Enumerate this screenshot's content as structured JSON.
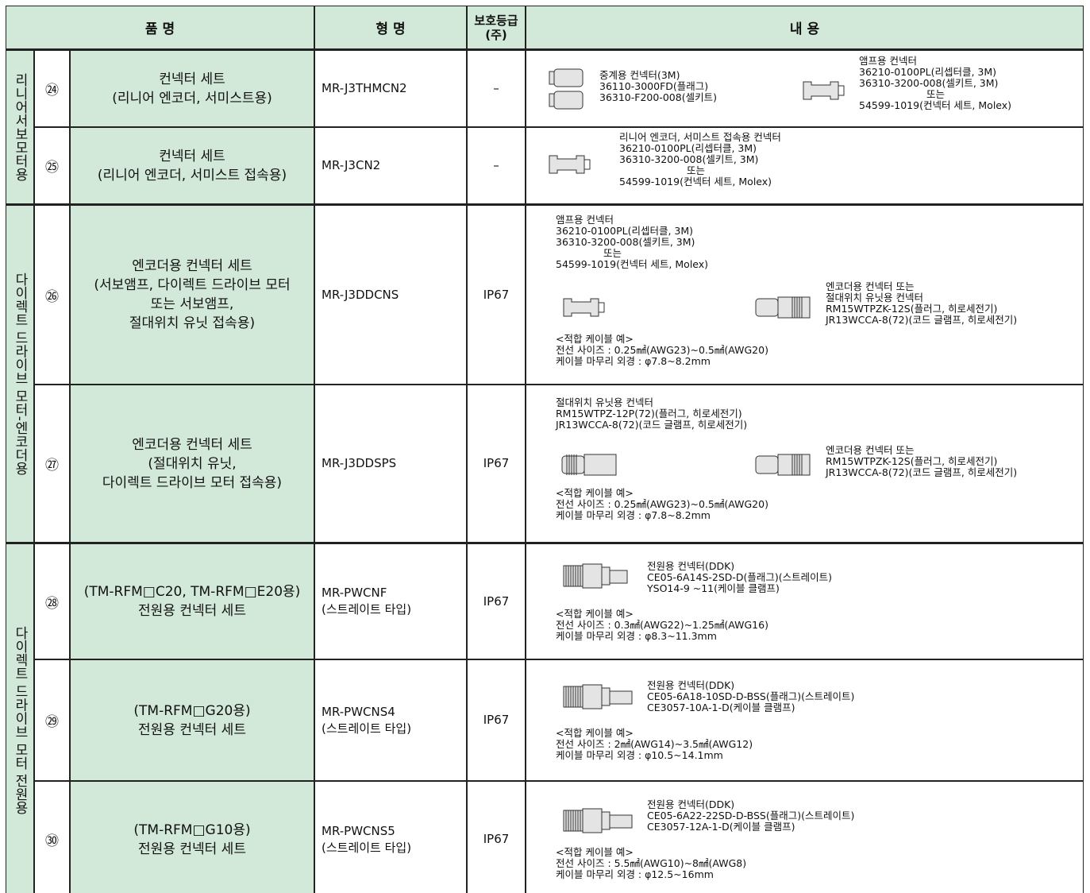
{
  "header": {
    "name": "품 명",
    "model": "형 명",
    "protection": [
      "보호등급",
      "(주)"
    ],
    "content": "내 용"
  },
  "groups": [
    {
      "label": "리니어서보모터용",
      "rows": [
        {
          "no": "㉔",
          "name": [
            "컨넥터 세트",
            "(리니어 엔코더, 서미스트용)"
          ],
          "model": [
            "MR-J3THMCN2"
          ],
          "protection": "–",
          "blocks": [
            [
              "중계용 컨넥터(3M)",
              "36110-3000FD(플래그)",
              "36310-F200-008(셀키트)"
            ],
            [
              "앰프용 컨넥터",
              "36210-0100PL(리셉터클, 3M)",
              "36310-3200-008(셀키트, 3M)",
              "또는",
              "54599-1019(컨넥터 세트, Molex)"
            ]
          ]
        },
        {
          "no": "㉕",
          "name": [
            "컨넥터 세트",
            "(리니어 엔코더, 서미스트 접속용)"
          ],
          "model": [
            "MR-J3CN2"
          ],
          "protection": "–",
          "blocks": [
            [
              "리니어 엔코더, 서미스트 접속용 컨넥터",
              "36210-0100PL(리셉터클, 3M)",
              "36310-3200-008(셀키트, 3M)",
              "또는",
              "54599-1019(컨넥터 세트, Molex)"
            ]
          ]
        }
      ]
    },
    {
      "label": "다이렉트 드라이브 모터-엔코더용",
      "rows": [
        {
          "no": "㉖",
          "name": [
            "엔코더용 컨넥터 세트",
            "(서보앰프, 다이렉트 드라이브 모터",
            "또는 서보앰프,",
            "절대위치 유닛 접속용)"
          ],
          "model": [
            "MR-J3DDCNS"
          ],
          "protection": "IP67",
          "blocks": [
            [
              "앰프용 컨넥터",
              "36210-0100PL(리셉터클, 3M)",
              "36310-3200-008(셀키트, 3M)",
              "또는",
              "54599-1019(컨넥터 세트, Molex)"
            ],
            [
              "엔코더용 컨넥터 또는",
              "절대위치 유닛용 컨넥터",
              "RM15WTPZK-12S(플러그, 히로세전기)",
              "JR13WCCA-8(72)(코드 글램프, 히로세전기)"
            ],
            [
              "<적합 케이블 예>",
              "전선 사이즈 : 0.25㎟(AWG23)~0.5㎟(AWG20)",
              "케이블 마무리 외경 : φ7.8~8.2mm"
            ]
          ]
        },
        {
          "no": "㉗",
          "name": [
            "엔코더용 컨넥터 세트",
            "(절대위치 유닛,",
            "다이렉트 드라이브 모터 접속용)"
          ],
          "model": [
            "MR-J3DDSPS"
          ],
          "protection": "IP67",
          "blocks": [
            [
              "절대위치 유닛용 컨넥터",
              "RM15WTPZ-12P(72)(플러그, 히로세전기)",
              "JR13WCCA-8(72)(코드 글램프, 히로세전기)"
            ],
            [
              "엔코더용 컨넥터 또는",
              "RM15WTPZK-12S(플러그, 히로세전기)",
              "JR13WCCA-8(72)(코드 글램프, 히로세전기)"
            ],
            [
              "<적합 케이블 예>",
              "전선 사이즈 : 0.25㎟(AWG23)~0.5㎟(AWG20)",
              "케이블 마무리 외경 : φ7.8~8.2mm"
            ]
          ]
        }
      ]
    },
    {
      "label": "다이렉트 드라이브 모터 전원용",
      "rows": [
        {
          "no": "㉘",
          "name": [
            "(TM-RFM□C20, TM-RFM□E20용)",
            "전원용 컨넥터 세트"
          ],
          "model": [
            "MR-PWCNF",
            "(스트레이트 타입)"
          ],
          "protection": "IP67",
          "blocks": [
            [
              "전원용 컨넥터(DDK)",
              "CE05-6A14S-2SD-D(플래그)(스트레이트)",
              "YSO14-9 ~11(케이블 클램프)"
            ],
            [
              "<적합 케이블 예>",
              "전선 사이즈 : 0.3㎟(AWG22)~1.25㎟(AWG16)",
              "케이블 마무리 외경 : φ8.3~11.3mm"
            ]
          ]
        },
        {
          "no": "㉙",
          "name": [
            "(TM-RFM□G20용)",
            "전원용 컨넥터 세트"
          ],
          "model": [
            "MR-PWCNS4",
            "(스트레이트 타입)"
          ],
          "protection": "IP67",
          "blocks": [
            [
              "전원용 컨넥터(DDK)",
              "CE05-6A18-10SD-D-BSS(플래그)(스트레이트)",
              "CE3057-10A-1-D(케이블 클램프)"
            ],
            [
              "<적합 케이블 예>",
              "전선 사이즈 : 2㎟(AWG14)~3.5㎟(AWG12)",
              "케이블 마무리 외경 : φ10.5~14.1mm"
            ]
          ]
        },
        {
          "no": "㉚",
          "name": [
            "(TM-RFM□G10용)",
            "전원용 컨넥터 세트"
          ],
          "model": [
            "MR-PWCNS5",
            "(스트레이트 타입)"
          ],
          "protection": "IP67",
          "blocks": [
            [
              "전원용 컨넥터(DDK)",
              "CE05-6A22-22SD-D-BSS(플래그)(스트레이트)",
              "CE3057-12A-1-D(케이블 클램프)"
            ],
            [
              "<적합 케이블 예>",
              "전선 사이즈 : 5.5㎟(AWG10)~8㎟(AWG8)",
              "케이블 마무리 외경 : φ12.5~16mm"
            ]
          ]
        }
      ]
    }
  ]
}
